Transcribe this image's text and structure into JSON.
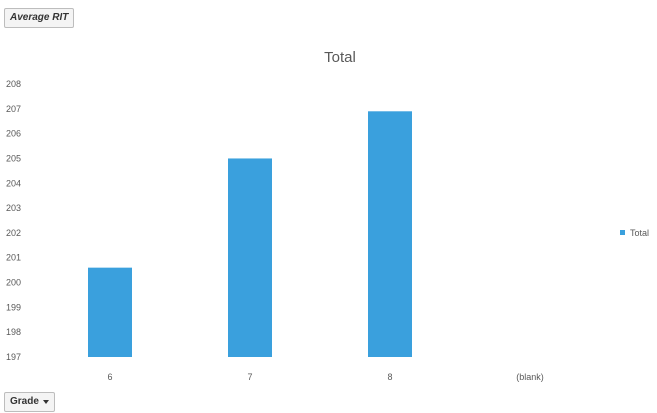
{
  "field_buttons": {
    "value_field_label": "Average RIT",
    "axis_field_label": "Grade"
  },
  "colors": {
    "series": "#3aa0dd",
    "text": "#595959"
  },
  "icons": {
    "axis_dropdown": "chevron-down-icon"
  },
  "chart_data": {
    "type": "bar",
    "title": "Total",
    "xlabel": "",
    "ylabel": "",
    "categories": [
      "6",
      "7",
      "8",
      "(blank)"
    ],
    "series": [
      {
        "name": "Total",
        "values": [
          200.6,
          205.0,
          206.9,
          null
        ]
      }
    ],
    "ylim": [
      197,
      208
    ],
    "y_ticks": [
      "197",
      "198",
      "199",
      "200",
      "201",
      "202",
      "203",
      "204",
      "205",
      "206",
      "207",
      "208"
    ],
    "grid": false,
    "legend_position": "right"
  }
}
